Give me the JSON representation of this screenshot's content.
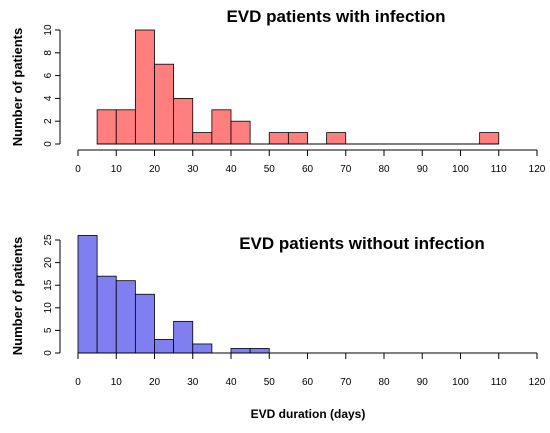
{
  "chart_data": [
    {
      "type": "bar",
      "subtype": "histogram",
      "title": "EVD patients with infection",
      "ylabel": "Number of patients",
      "xlabel": "",
      "color": "#ff7f7f",
      "bin_width": 5,
      "bin_starts": [
        5,
        10,
        15,
        20,
        25,
        30,
        35,
        40,
        45,
        50,
        55,
        60,
        65,
        70,
        75,
        80,
        85,
        90,
        95,
        100,
        105
      ],
      "values": [
        3,
        3,
        10,
        7,
        4,
        1,
        3,
        2,
        0,
        1,
        1,
        0,
        1,
        0,
        0,
        0,
        0,
        0,
        0,
        0,
        1
      ],
      "xlim": [
        0,
        120
      ],
      "xticks": [
        0,
        10,
        20,
        30,
        40,
        50,
        60,
        70,
        80,
        90,
        100,
        110,
        120
      ],
      "ylim": [
        0,
        10
      ],
      "yticks": [
        0,
        2,
        4,
        6,
        8,
        10
      ]
    },
    {
      "type": "bar",
      "subtype": "histogram",
      "title": "EVD patients without infection",
      "ylabel": "Number of patients",
      "xlabel": "EVD duration (days)",
      "color": "#7f7ff2",
      "bin_width": 5,
      "bin_starts": [
        0,
        5,
        10,
        15,
        20,
        25,
        30,
        35,
        40,
        45
      ],
      "values": [
        26,
        17,
        16,
        13,
        3,
        7,
        2,
        0,
        1,
        1
      ],
      "xlim": [
        0,
        120
      ],
      "xticks": [
        0,
        10,
        20,
        30,
        40,
        50,
        60,
        70,
        80,
        90,
        100,
        110,
        120
      ],
      "ylim": [
        0,
        25
      ],
      "yticks": [
        0,
        5,
        10,
        15,
        20,
        25
      ]
    }
  ]
}
